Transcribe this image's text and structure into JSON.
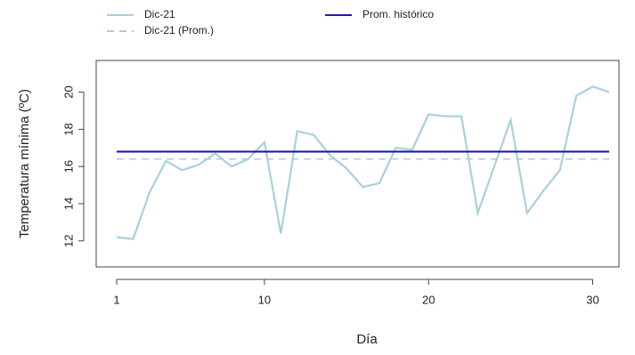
{
  "chart_data": {
    "type": "line",
    "xlabel": "Día",
    "ylabel": "Temperatura mínima (ºC)",
    "x": [
      1,
      2,
      3,
      4,
      5,
      6,
      7,
      8,
      9,
      10,
      11,
      12,
      13,
      14,
      15,
      16,
      17,
      18,
      19,
      20,
      21,
      22,
      23,
      24,
      25,
      26,
      27,
      28,
      29,
      30,
      31
    ],
    "series": [
      {
        "name": "Dic-21",
        "color": "#a9d0dc",
        "style": "solid",
        "values": [
          12.2,
          12.1,
          14.6,
          16.3,
          15.8,
          16.1,
          16.7,
          16.0,
          16.4,
          17.3,
          12.4,
          17.9,
          17.7,
          16.6,
          15.9,
          14.9,
          15.1,
          17.0,
          16.9,
          18.8,
          18.7,
          18.7,
          13.5,
          16.0,
          18.5,
          13.5,
          14.7,
          15.8,
          19.8,
          20.3,
          20.0
        ]
      },
      {
        "name": "Dic-21 (Prom.)",
        "color": "#b4c8dc",
        "style": "dash",
        "x": [
          1,
          31
        ],
        "values": [
          16.4,
          16.4
        ]
      },
      {
        "name": "Prom. histórico",
        "color": "#1c1ca8",
        "style": "solid",
        "x": [
          1,
          31
        ],
        "values": [
          16.8,
          16.8
        ]
      }
    ],
    "xlim": [
      -0.25,
      31.6
    ],
    "ylim": [
      10.6,
      21.7
    ],
    "xticks": [
      1,
      10,
      20,
      30
    ],
    "yticks": [
      12,
      14,
      16,
      18,
      20
    ],
    "grid": false
  }
}
